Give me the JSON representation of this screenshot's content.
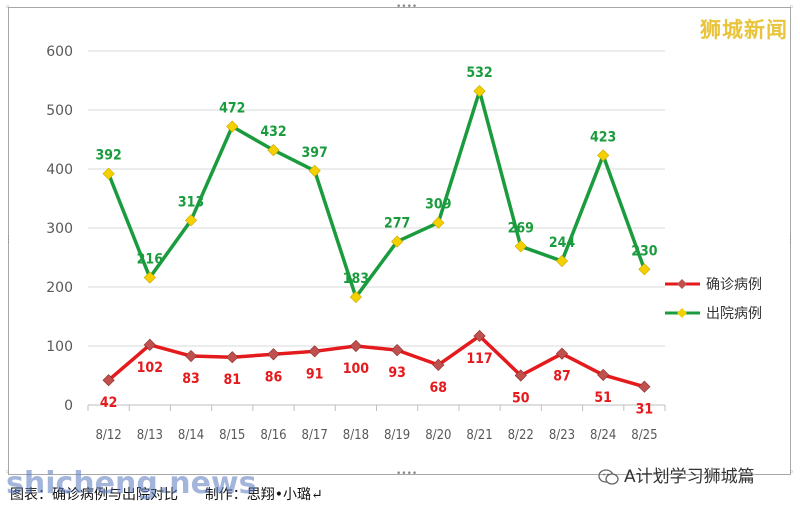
{
  "brand": "狮城新闻",
  "caption": "图表：确诊病例与出院对比      制作：思翔•小璐↵",
  "watermark": "shicheng.news",
  "account": "A计划学习狮城篇",
  "colors": {
    "confirmed": "#e41a1c",
    "discharged": "#1a9c3e",
    "marker": "#f5d000",
    "confirmed_marker": "#c0504d",
    "brand": "#e9c43a"
  },
  "chart_data": {
    "type": "line",
    "categories": [
      "8/12",
      "8/13",
      "8/14",
      "8/15",
      "8/16",
      "8/17",
      "8/18",
      "8/19",
      "8/20",
      "8/21",
      "8/22",
      "8/23",
      "8/24",
      "8/25"
    ],
    "series": [
      {
        "name": "确诊病例",
        "values": [
          42,
          102,
          83,
          81,
          86,
          91,
          100,
          93,
          68,
          117,
          50,
          87,
          51,
          31
        ]
      },
      {
        "name": "出院病例",
        "values": [
          392,
          216,
          313,
          472,
          432,
          397,
          183,
          277,
          309,
          532,
          269,
          244,
          423,
          230
        ]
      }
    ],
    "y_ticks": [
      "0",
      "100",
      "200",
      "300",
      "400",
      "500",
      "600"
    ],
    "ylim": [
      0,
      600
    ],
    "grid": true,
    "legend_position": "right"
  }
}
